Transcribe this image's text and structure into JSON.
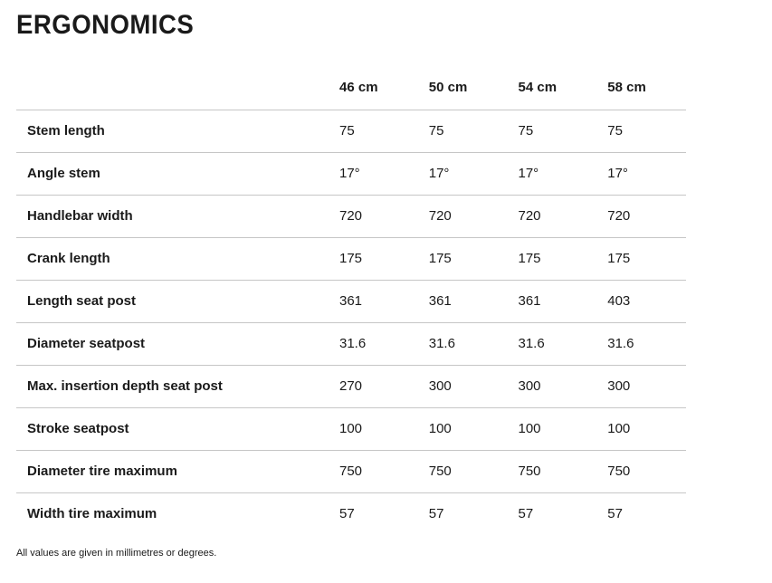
{
  "page": {
    "title": "ERGONOMICS",
    "footnote": "All values are given in millimetres or degrees."
  },
  "colors": {
    "background": "#ffffff",
    "text": "#1a1a1a",
    "divider": "#c6c6c6"
  },
  "table": {
    "columns": [
      "46 cm",
      "50 cm",
      "54 cm",
      "58 cm"
    ],
    "rows": [
      {
        "label": "Stem length",
        "values": [
          "75",
          "75",
          "75",
          "75"
        ]
      },
      {
        "label": "Angle stem",
        "values": [
          "17°",
          "17°",
          "17°",
          "17°"
        ]
      },
      {
        "label": "Handlebar width",
        "values": [
          "720",
          "720",
          "720",
          "720"
        ]
      },
      {
        "label": "Crank length",
        "values": [
          "175",
          "175",
          "175",
          "175"
        ]
      },
      {
        "label": "Length seat post",
        "values": [
          "361",
          "361",
          "361",
          "403"
        ]
      },
      {
        "label": "Diameter seatpost",
        "values": [
          "31.6",
          "31.6",
          "31.6",
          "31.6"
        ]
      },
      {
        "label": "Max. insertion depth seat post",
        "values": [
          "270",
          "300",
          "300",
          "300"
        ]
      },
      {
        "label": "Stroke seatpost",
        "values": [
          "100",
          "100",
          "100",
          "100"
        ]
      },
      {
        "label": "Diameter tire maximum",
        "values": [
          "750",
          "750",
          "750",
          "750"
        ]
      },
      {
        "label": "Width tire maximum",
        "values": [
          "57",
          "57",
          "57",
          "57"
        ]
      }
    ]
  }
}
